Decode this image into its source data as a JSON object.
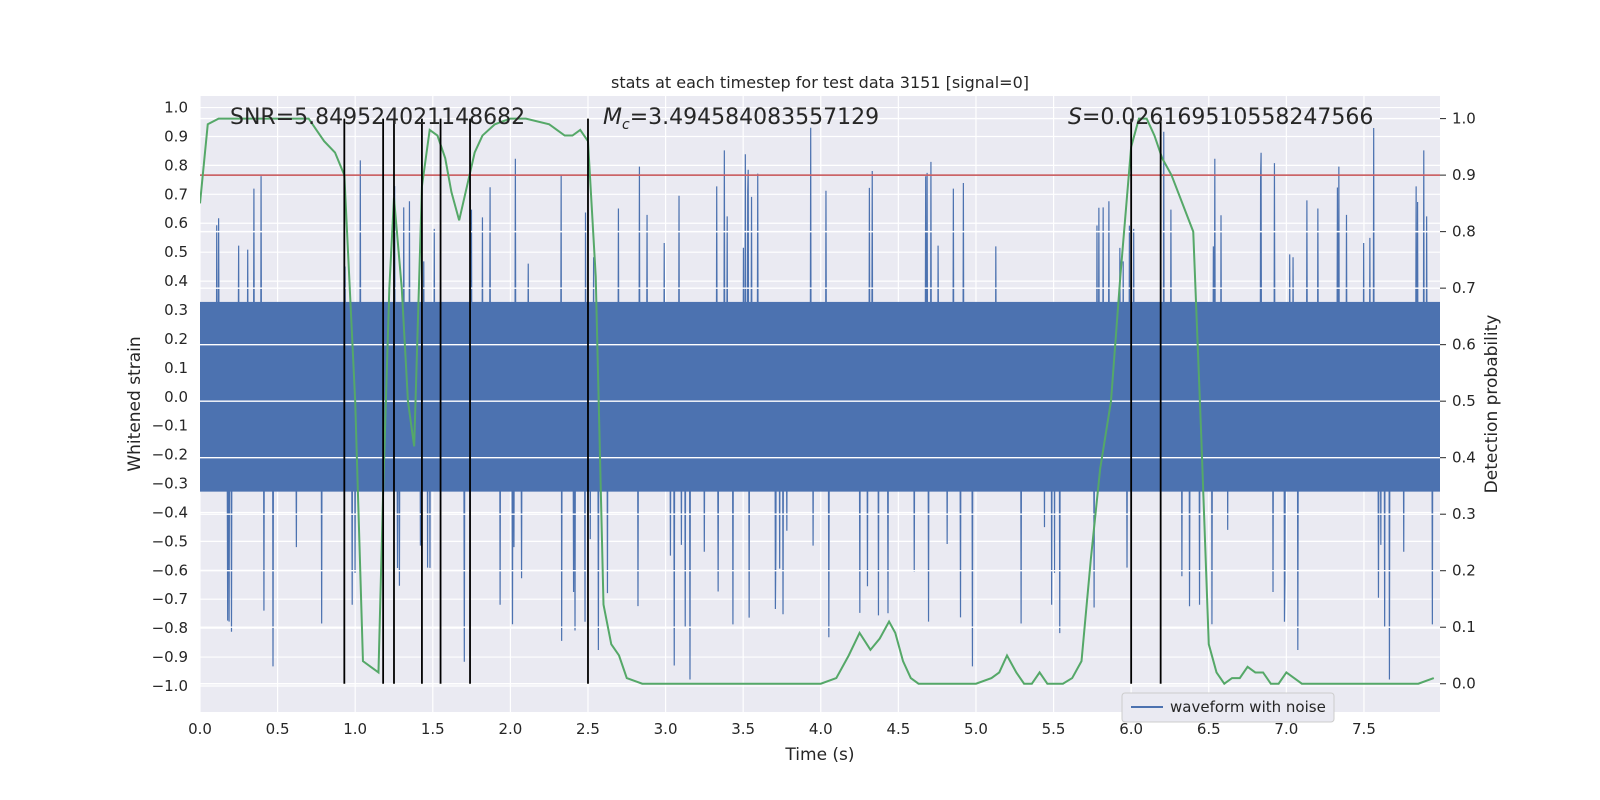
{
  "chart_data": {
    "type": "line",
    "title": "stats at each timestep for test data 3151 [signal=0]",
    "xlabel": "Time (s)",
    "ylabel_left": "Whitened strain",
    "ylabel_right": "Detection probability",
    "xlim": [
      0.0,
      7.99
    ],
    "ylim_left": [
      -1.09,
      1.04
    ],
    "ylim_right": [
      -0.05,
      1.04
    ],
    "x_ticks": [
      0.0,
      0.5,
      1.0,
      1.5,
      2.0,
      2.5,
      3.0,
      3.5,
      4.0,
      4.5,
      5.0,
      5.5,
      6.0,
      6.5,
      7.0,
      7.5
    ],
    "x_tick_labels": [
      "0.0",
      "0.5",
      "1.0",
      "1.5",
      "2.0",
      "2.5",
      "3.0",
      "3.5",
      "4.0",
      "4.5",
      "5.0",
      "5.5",
      "6.0",
      "6.5",
      "7.0",
      "7.5"
    ],
    "y_left_ticks": [
      1.0,
      0.9,
      0.8,
      0.7,
      0.6,
      0.5,
      0.4,
      0.3,
      0.2,
      0.1,
      0.0,
      -0.1,
      -0.2,
      -0.3,
      -0.4,
      -0.5,
      -0.6,
      -0.7,
      -0.8,
      -0.9,
      -1.0
    ],
    "y_left_tick_labels": [
      "1.0",
      "0.9",
      "0.8",
      "0.7",
      "0.6",
      "0.5",
      "0.4",
      "0.3",
      "0.2",
      "0.1",
      "0.0",
      "−0.1",
      "−0.2",
      "−0.3",
      "−0.4",
      "−0.5",
      "−0.6",
      "−0.7",
      "−0.8",
      "−0.9",
      "−1.0"
    ],
    "y_right_ticks": [
      1.0,
      0.9,
      0.8,
      0.7,
      0.6,
      0.5,
      0.4,
      0.3,
      0.2,
      0.1,
      0.0
    ],
    "y_right_tick_labels": [
      "1.0",
      "0.9",
      "0.8",
      "0.7",
      "0.6",
      "0.5",
      "0.4",
      "0.3",
      "0.2",
      "0.1",
      "0.0"
    ],
    "grid": true,
    "annotations": {
      "snr": "SNR=5.849524021148682",
      "mc_symbol": "M",
      "mc_sub": "c",
      "mc_value": "=3.494584083557129",
      "s_symbol": "S",
      "s_value": "=0.026169510558247566"
    },
    "threshold": {
      "axis": "right",
      "value": 0.9,
      "color": "#c44e52"
    },
    "vertical_markers_x": [
      0.93,
      1.18,
      1.25,
      1.43,
      1.55,
      1.74,
      2.5,
      6.0,
      6.19
    ],
    "vertical_marker_range_right": [
      0.0,
      1.0
    ],
    "waveform": {
      "name": "waveform with noise",
      "color": "#4c72b0",
      "core_amplitude": 0.4,
      "peak_amplitude_max": 0.93,
      "peak_amplitude_min": -1.0
    },
    "detection_probability": {
      "color": "#55a868",
      "x": [
        0.0,
        0.05,
        0.12,
        0.2,
        0.3,
        0.4,
        0.5,
        0.6,
        0.7,
        0.75,
        0.8,
        0.87,
        0.93,
        1.0,
        1.05,
        1.1,
        1.15,
        1.18,
        1.22,
        1.25,
        1.3,
        1.34,
        1.38,
        1.43,
        1.48,
        1.53,
        1.58,
        1.62,
        1.67,
        1.72,
        1.77,
        1.82,
        1.9,
        2.0,
        2.1,
        2.25,
        2.3,
        2.35,
        2.4,
        2.45,
        2.5,
        2.55,
        2.6,
        2.65,
        2.7,
        2.75,
        2.85,
        2.92,
        3.0,
        3.1,
        3.2,
        3.3,
        3.4,
        3.5,
        3.6,
        3.7,
        3.8,
        3.9,
        4.0,
        4.1,
        4.18,
        4.25,
        4.32,
        4.38,
        4.44,
        4.48,
        4.53,
        4.58,
        4.63,
        4.7,
        4.8,
        4.9,
        5.0,
        5.1,
        5.15,
        5.2,
        5.26,
        5.31,
        5.36,
        5.41,
        5.46,
        5.51,
        5.56,
        5.62,
        5.68,
        5.74,
        5.8,
        5.87,
        5.93,
        6.0,
        6.05,
        6.1,
        6.15,
        6.2,
        6.26,
        6.33,
        6.4,
        6.45,
        6.5,
        6.55,
        6.6,
        6.65,
        6.7,
        6.75,
        6.8,
        6.85,
        6.9,
        6.95,
        7.0,
        7.05,
        7.1,
        7.2,
        7.3,
        7.5,
        7.7,
        7.85,
        7.95
      ],
      "y": [
        0.85,
        0.99,
        1.0,
        1.0,
        1.0,
        1.0,
        1.0,
        1.0,
        1.0,
        0.98,
        0.96,
        0.94,
        0.9,
        0.5,
        0.04,
        0.03,
        0.02,
        0.34,
        0.7,
        0.86,
        0.7,
        0.5,
        0.42,
        0.88,
        0.98,
        0.97,
        0.93,
        0.87,
        0.82,
        0.88,
        0.94,
        0.97,
        0.99,
        1.0,
        1.0,
        0.99,
        0.98,
        0.97,
        0.97,
        0.98,
        0.96,
        0.72,
        0.14,
        0.07,
        0.05,
        0.01,
        0.0,
        0.0,
        0.0,
        0.0,
        0.0,
        0.0,
        0.0,
        0.0,
        0.0,
        0.0,
        0.0,
        0.0,
        0.0,
        0.01,
        0.05,
        0.09,
        0.06,
        0.08,
        0.11,
        0.09,
        0.04,
        0.01,
        0.0,
        0.0,
        0.0,
        0.0,
        0.0,
        0.01,
        0.02,
        0.05,
        0.02,
        0.0,
        0.0,
        0.02,
        0.0,
        0.0,
        0.0,
        0.01,
        0.04,
        0.22,
        0.38,
        0.5,
        0.72,
        0.95,
        1.0,
        1.0,
        0.97,
        0.93,
        0.9,
        0.85,
        0.8,
        0.45,
        0.07,
        0.02,
        0.0,
        0.01,
        0.01,
        0.03,
        0.02,
        0.02,
        0.0,
        0.0,
        0.02,
        0.01,
        0.0,
        0.0,
        0.0,
        0.0,
        0.0,
        0.0,
        0.01
      ]
    }
  }
}
